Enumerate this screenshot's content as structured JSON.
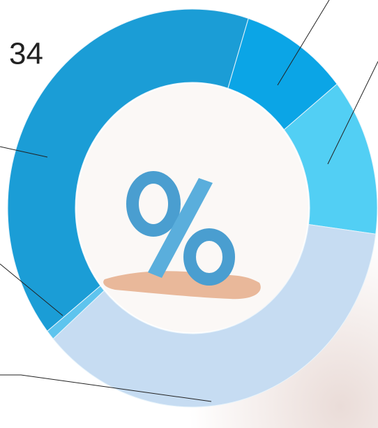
{
  "chart_data": {
    "type": "donut",
    "annotation": "34",
    "categories": [
      null,
      null,
      null,
      null,
      null
    ],
    "values": [
      9.4,
      12.8,
      36.5,
      0.8,
      40.5
    ],
    "colors": [
      "#0ba5e6",
      "#52cff4",
      "#c6dcf2",
      "#5ec4ee",
      "#1b9dd6"
    ]
  }
}
